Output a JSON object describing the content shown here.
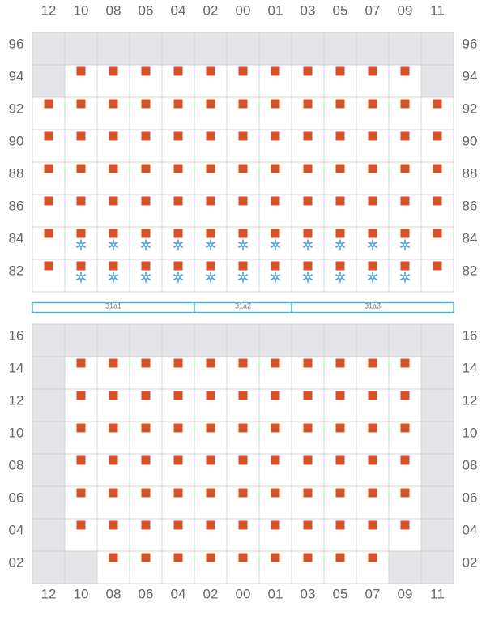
{
  "columns": [
    "12",
    "10",
    "08",
    "06",
    "04",
    "02",
    "00",
    "01",
    "03",
    "05",
    "07",
    "09",
    "11"
  ],
  "top_rows": [
    "96",
    "94",
    "92",
    "90",
    "88",
    "86",
    "84",
    "82"
  ],
  "sections": [
    "31a1",
    "31a2",
    "31a3"
  ],
  "bottom_rows": [
    "16",
    "14",
    "12",
    "10",
    "08",
    "06",
    "04",
    "02"
  ]
}
